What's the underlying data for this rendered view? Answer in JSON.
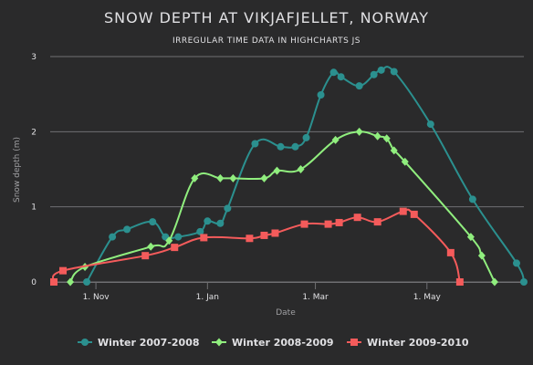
{
  "chart_data": {
    "type": "line",
    "title": "SNOW DEPTH AT VIKJAFJELLET, NORWAY",
    "subtitle": "IRREGULAR TIME DATA IN HIGHCHARTS JS",
    "xlabel": "Date",
    "ylabel": "Snow depth (m)",
    "ylim": [
      0,
      3
    ],
    "yticks": [
      0,
      1,
      2,
      3
    ],
    "xlim": [
      "1970-10-07",
      "1971-06-23"
    ],
    "xticks": [
      {
        "date": "1970-11-01",
        "label": "1. Nov"
      },
      {
        "date": "1971-01-01",
        "label": "1. Jan"
      },
      {
        "date": "1971-03-01",
        "label": "1. Mar"
      },
      {
        "date": "1971-05-01",
        "label": "1. May"
      }
    ],
    "grid": "horizontal",
    "legend_position": "bottom",
    "series": [
      {
        "name": "Winter 2007-2008",
        "color": "#2b908f",
        "marker": "circle",
        "points": [
          [
            "1970-10-27",
            0
          ],
          [
            "1970-11-10",
            0.6
          ],
          [
            "1970-11-18",
            0.7
          ],
          [
            "1970-12-02",
            0.8
          ],
          [
            "1970-12-09",
            0.6
          ],
          [
            "1970-12-16",
            0.6
          ],
          [
            "1970-12-28",
            0.67
          ],
          [
            "1971-01-01",
            0.81
          ],
          [
            "1971-01-08",
            0.78
          ],
          [
            "1971-01-12",
            0.98
          ],
          [
            "1971-01-27",
            1.84
          ],
          [
            "1971-02-10",
            1.8
          ],
          [
            "1971-02-18",
            1.8
          ],
          [
            "1971-02-24",
            1.92
          ],
          [
            "1971-03-04",
            2.49
          ],
          [
            "1971-03-11",
            2.79
          ],
          [
            "1971-03-15",
            2.73
          ],
          [
            "1971-03-25",
            2.61
          ],
          [
            "1971-04-02",
            2.76
          ],
          [
            "1971-04-06",
            2.82
          ],
          [
            "1971-04-13",
            2.8
          ],
          [
            "1971-05-03",
            2.1
          ],
          [
            "1971-05-26",
            1.1
          ],
          [
            "1971-06-19",
            0.25
          ],
          [
            "1971-06-23",
            0
          ]
        ]
      },
      {
        "name": "Winter 2008-2009",
        "color": "#90ee7e",
        "marker": "diamond",
        "points": [
          [
            "1970-10-18",
            0
          ],
          [
            "1970-10-26",
            0.2
          ],
          [
            "1970-12-01",
            0.47
          ],
          [
            "1970-12-11",
            0.55
          ],
          [
            "1970-12-25",
            1.38
          ],
          [
            "1971-01-08",
            1.38
          ],
          [
            "1971-01-15",
            1.38
          ],
          [
            "1971-02-01",
            1.38
          ],
          [
            "1971-02-08",
            1.48
          ],
          [
            "1971-02-21",
            1.5
          ],
          [
            "1971-03-12",
            1.89
          ],
          [
            "1971-03-25",
            2.0
          ],
          [
            "1971-04-04",
            1.94
          ],
          [
            "1971-04-09",
            1.91
          ],
          [
            "1971-04-13",
            1.75
          ],
          [
            "1971-04-19",
            1.6
          ],
          [
            "1971-05-25",
            0.6
          ],
          [
            "1971-05-31",
            0.35
          ],
          [
            "1971-06-07",
            0
          ]
        ]
      },
      {
        "name": "Winter 2009-2010",
        "color": "#f45b5b",
        "marker": "square",
        "points": [
          [
            "1970-10-09",
            0
          ],
          [
            "1970-10-14",
            0.15
          ],
          [
            "1970-11-28",
            0.35
          ],
          [
            "1970-12-14",
            0.46
          ],
          [
            "1970-12-30",
            0.59
          ],
          [
            "1971-01-24",
            0.58
          ],
          [
            "1971-02-01",
            0.62
          ],
          [
            "1971-02-07",
            0.65
          ],
          [
            "1971-02-23",
            0.77
          ],
          [
            "1971-03-08",
            0.77
          ],
          [
            "1971-03-14",
            0.79
          ],
          [
            "1971-03-24",
            0.86
          ],
          [
            "1971-04-04",
            0.8
          ],
          [
            "1971-04-18",
            0.94
          ],
          [
            "1971-04-24",
            0.9
          ],
          [
            "1971-05-14",
            0.39
          ],
          [
            "1971-05-19",
            0
          ]
        ]
      }
    ]
  }
}
